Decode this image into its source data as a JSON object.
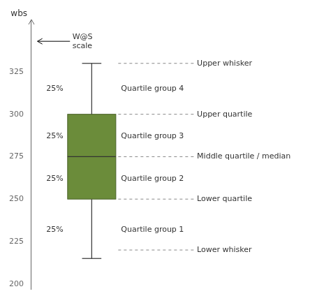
{
  "chart_data": {
    "type": "box",
    "ylabel": "wbs",
    "ylim": [
      197,
      355
    ],
    "yticks": [
      200,
      225,
      250,
      275,
      300,
      325
    ],
    "tick_labels": "y",
    "grid": false,
    "color": "#6b8c3a",
    "box": {
      "whislo": 215,
      "q1": 250,
      "median": 275,
      "q3": 300,
      "whishi": 330
    },
    "annotations": [
      {
        "y": 330,
        "label": "Upper whisker"
      },
      {
        "y": 300,
        "label": "Upper quartile"
      },
      {
        "y": 275,
        "label": "Middle quartile / median"
      },
      {
        "y": 250,
        "label": "Lower quartile"
      },
      {
        "y": 220,
        "label": "Lower whisker"
      }
    ],
    "group_labels": [
      {
        "y": 315,
        "label": "Quartile group 4"
      },
      {
        "y": 287,
        "label": "Quartile group 3"
      },
      {
        "y": 262,
        "label": "Quartile group 2"
      },
      {
        "y": 232,
        "label": "Quartile group 1"
      }
    ],
    "pct_labels": [
      {
        "y": 315,
        "label": "25%"
      },
      {
        "y": 287,
        "label": "25%"
      },
      {
        "y": 262,
        "label": "25%"
      },
      {
        "y": 232,
        "label": "25%"
      }
    ],
    "arrow": {
      "y": 343,
      "label": "W@S\nscale"
    }
  }
}
